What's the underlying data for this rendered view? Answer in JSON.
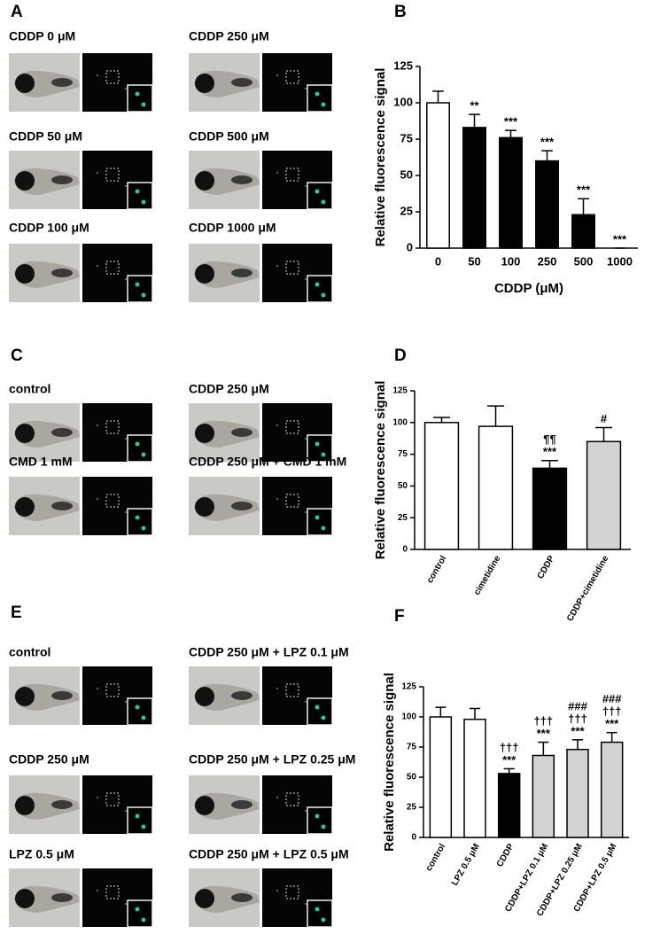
{
  "figure": {
    "panel_labels": [
      "A",
      "B",
      "C",
      "D",
      "E",
      "F"
    ],
    "image_labels": [
      "CDDP 0 μM",
      "CDDP 250 μM",
      "CDDP 50 μM",
      "CDDP 500 μM",
      "CDDP 100 μM",
      "CDDP 1000 μM",
      "control",
      "CDDP 250 μM",
      "CMD 1 mM",
      "CDDP 250 μM + CMD 1 mM",
      "control",
      "CDDP 250 μM + LPZ 0.1 μM",
      "CDDP 250 μM",
      "CDDP 250 μM + LPZ 0.25 μM",
      "LPZ 0.5 μM",
      "CDDP 250 μM + LPZ 0.5 μM"
    ]
  },
  "chart_data": [
    {
      "type": "bar",
      "ylabel": "Relative fluorescence signal",
      "xlabel": "CDDP (μM)",
      "categories": [
        "0",
        "50",
        "100",
        "250",
        "500",
        "1000"
      ],
      "values": [
        100,
        83,
        76,
        60,
        23,
        0
      ],
      "errors": [
        8,
        9,
        5,
        7,
        11,
        0
      ],
      "colors": [
        "#ffffff",
        "#000000",
        "#000000",
        "#000000",
        "#000000",
        "#000000"
      ],
      "annotations": [
        null,
        [
          "**"
        ],
        [
          "***"
        ],
        [
          "***"
        ],
        [
          "***"
        ],
        [
          "***"
        ]
      ],
      "ylim": [
        0,
        125
      ],
      "yticks": [
        0,
        25,
        50,
        75,
        100,
        125
      ]
    },
    {
      "type": "bar",
      "ylabel": "Relative fluorescence signal",
      "categories": [
        "control",
        "cimetidine",
        "CDDP",
        "CDDP+cimetidine"
      ],
      "values": [
        100,
        97,
        64,
        85
      ],
      "errors": [
        4,
        16,
        6,
        11
      ],
      "colors": [
        "#ffffff",
        "#ffffff",
        "#000000",
        "#d3d3d3"
      ],
      "annotations": [
        null,
        null,
        [
          "¶¶",
          "***"
        ],
        [
          "#"
        ]
      ],
      "ylim": [
        0,
        125
      ],
      "yticks": [
        0,
        25,
        50,
        75,
        100,
        125
      ]
    },
    {
      "type": "bar",
      "ylabel": "Relative fluorescence signal",
      "categories": [
        "control",
        "LPZ 0.5 μM",
        "CDDP",
        "CDDP+LPZ 0.1 μM",
        "CDDP+LPZ 0.25 μM",
        "CDDP+LPZ 0.5 μM"
      ],
      "values": [
        100,
        98,
        53,
        68,
        73,
        79
      ],
      "errors": [
        8,
        9,
        4,
        11,
        8,
        8
      ],
      "colors": [
        "#ffffff",
        "#ffffff",
        "#000000",
        "#d3d3d3",
        "#d3d3d3",
        "#d3d3d3"
      ],
      "annotations": [
        null,
        null,
        [
          "†††",
          "***"
        ],
        [
          "†††",
          "***"
        ],
        [
          "###",
          "†††",
          "***"
        ],
        [
          "###",
          "†††",
          "***"
        ]
      ],
      "ylim": [
        0,
        125
      ],
      "yticks": [
        0,
        25,
        50,
        75,
        100,
        125
      ]
    }
  ]
}
